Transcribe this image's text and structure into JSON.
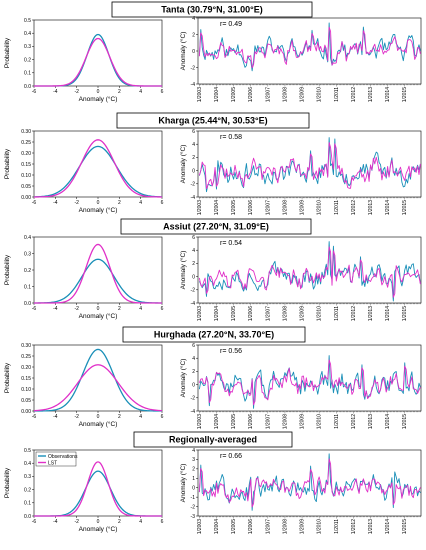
{
  "colors": {
    "observations": "#1a8fb8",
    "lst": "#e030c8"
  },
  "legend": {
    "observations": "Observations",
    "lst": "LST"
  },
  "date_ticks": [
    "1/2003",
    "1/2004",
    "1/2005",
    "1/2006",
    "1/2007",
    "1/2008",
    "1/2009",
    "1/2010",
    "1/2011",
    "1/2012",
    "1/2013",
    "1/2014",
    "1/2015"
  ],
  "chart_data": [
    {
      "panel": "Tanta",
      "title": "Tanta (30.79°N, 31.00°E)",
      "correlation": "r= 0.49",
      "pdf": {
        "type": "line",
        "xlabel": "Anomaly (°C)",
        "ylabel": "Probability",
        "xlim": [
          -6,
          6
        ],
        "ylim": [
          0,
          0.5
        ],
        "xticks": [
          "-6",
          "-4",
          "-2",
          "0",
          "2",
          "4",
          "6"
        ],
        "yticks": [
          "0.0",
          "0.1",
          "0.2",
          "0.3",
          "0.4",
          "0.5"
        ],
        "series": [
          {
            "name": "Observations",
            "peak": 0.39,
            "sigma": 1.02
          },
          {
            "name": "LST",
            "peak": 0.36,
            "sigma": 1.11
          }
        ]
      },
      "ts": {
        "type": "line",
        "ylabel": "Anomaly (°C)",
        "ylim": [
          -4,
          4
        ],
        "yticks": [
          "-4",
          "-2",
          "0",
          "2",
          "4"
        ],
        "amp": 1.0,
        "seed": 11,
        "events": [
          {
            "t": 2010.55,
            "v": 3.4
          },
          {
            "t": 2009.6,
            "v": 2.5
          },
          {
            "t": 2003.05,
            "v": 2.6
          },
          {
            "t": 2006.1,
            "v": -2.4
          },
          {
            "t": 2012.6,
            "v": 2.9
          }
        ]
      }
    },
    {
      "panel": "Kharga",
      "title": "Kharga (25.44°N, 30.53°E)",
      "correlation": "r= 0.58",
      "pdf": {
        "type": "line",
        "xlabel": "Anomaly (°C)",
        "ylabel": "Probability",
        "xlim": [
          -6,
          6
        ],
        "ylim": [
          0,
          0.3
        ],
        "xticks": [
          "-6",
          "-4",
          "-2",
          "0",
          "2",
          "4",
          "6"
        ],
        "yticks": [
          "0.00",
          "0.05",
          "0.10",
          "0.15",
          "0.20",
          "0.25",
          "0.30"
        ],
        "series": [
          {
            "name": "Observations",
            "peak": 0.23,
            "sigma": 1.73
          },
          {
            "name": "LST",
            "peak": 0.26,
            "sigma": 1.53
          }
        ]
      },
      "ts": {
        "type": "line",
        "ylabel": "Anomaly (°C)",
        "ylim": [
          -4,
          6
        ],
        "yticks": [
          "-4",
          "-2",
          "0",
          "2",
          "4",
          "6"
        ],
        "amp": 1.4,
        "seed": 23,
        "events": [
          {
            "t": 2010.55,
            "v": 5.0
          },
          {
            "t": 2010.9,
            "v": 4.8
          },
          {
            "t": 2009.5,
            "v": 3.0
          },
          {
            "t": 2003.4,
            "v": -3.2
          },
          {
            "t": 2004.0,
            "v": -2.8
          }
        ]
      }
    },
    {
      "panel": "Assiut",
      "title": "Assiut (27.20°N, 31.09°E)",
      "correlation": "r= 0.54",
      "pdf": {
        "type": "line",
        "xlabel": "Anomaly (°C)",
        "ylabel": "Probability",
        "xlim": [
          -6,
          6
        ],
        "ylim": [
          0,
          0.4
        ],
        "xticks": [
          "-6",
          "-4",
          "-2",
          "0",
          "2",
          "4",
          "6"
        ],
        "yticks": [
          "0.0",
          "0.1",
          "0.2",
          "0.3",
          "0.4"
        ],
        "series": [
          {
            "name": "Observations",
            "peak": 0.265,
            "sigma": 1.5
          },
          {
            "name": "LST",
            "peak": 0.355,
            "sigma": 1.12
          }
        ]
      },
      "ts": {
        "type": "line",
        "ylabel": "Anomaly (°C)",
        "ylim": [
          -4,
          6
        ],
        "yticks": [
          "-4",
          "-2",
          "0",
          "2",
          "4",
          "6"
        ],
        "amp": 1.3,
        "seed": 37,
        "events": [
          {
            "t": 2010.55,
            "v": 5.3
          },
          {
            "t": 2010.8,
            "v": 4.6
          },
          {
            "t": 2003.4,
            "v": -3.0
          },
          {
            "t": 2014.3,
            "v": -3.7
          },
          {
            "t": 2012.4,
            "v": 3.0
          }
        ]
      }
    },
    {
      "panel": "Hurghada",
      "title": "Hurghada (27.20°N, 33.70°E)",
      "correlation": "r= 0.56",
      "pdf": {
        "type": "line",
        "xlabel": "Anomaly (°C)",
        "ylabel": "Probability",
        "xlim": [
          -6,
          6
        ],
        "ylim": [
          0,
          0.3
        ],
        "xticks": [
          "-6",
          "-4",
          "-2",
          "0",
          "2",
          "4",
          "6"
        ],
        "yticks": [
          "0.00",
          "0.05",
          "0.10",
          "0.15",
          "0.20",
          "0.25",
          "0.30"
        ],
        "series": [
          {
            "name": "Observations",
            "peak": 0.28,
            "sigma": 1.42
          },
          {
            "name": "LST",
            "peak": 0.21,
            "sigma": 1.9
          }
        ]
      },
      "ts": {
        "type": "line",
        "ylabel": "Anomaly (°C)",
        "ylim": [
          -4,
          6
        ],
        "yticks": [
          "-4",
          "-2",
          "0",
          "2",
          "4",
          "6"
        ],
        "amp": 1.3,
        "seed": 51,
        "events": [
          {
            "t": 2010.55,
            "v": 4.4
          },
          {
            "t": 2006.2,
            "v": -3.6
          },
          {
            "t": 2003.6,
            "v": -3.2
          },
          {
            "t": 2015.0,
            "v": 3.3
          },
          {
            "t": 2012.5,
            "v": 3.0
          }
        ]
      }
    },
    {
      "panel": "Regionally-averaged",
      "title": "Regionally-averaged",
      "correlation": "r= 0.66",
      "pdf": {
        "type": "line",
        "xlabel": "Anomaly (°C)",
        "ylabel": "Probability",
        "xlim": [
          -6,
          6
        ],
        "ylim": [
          0,
          0.5
        ],
        "xticks": [
          "-6",
          "-4",
          "-2",
          "0",
          "2",
          "4",
          "6"
        ],
        "yticks": [
          "0.0",
          "0.1",
          "0.2",
          "0.3",
          "0.4",
          "0.5"
        ],
        "series": [
          {
            "name": "Observations",
            "peak": 0.34,
            "sigma": 1.17
          },
          {
            "name": "LST",
            "peak": 0.41,
            "sigma": 0.97
          }
        ]
      },
      "ts": {
        "type": "line",
        "ylabel": "Anomaly (°C)",
        "ylim": [
          -3,
          4
        ],
        "yticks": [
          "-3",
          "-2",
          "-1",
          "0",
          "1",
          "2",
          "3",
          "4"
        ],
        "amp": 0.9,
        "seed": 67,
        "events": [
          {
            "t": 2010.55,
            "v": 3.6
          },
          {
            "t": 2009.5,
            "v": 2.3
          },
          {
            "t": 2006.1,
            "v": -2.4
          },
          {
            "t": 2003.05,
            "v": 2.4
          },
          {
            "t": 2014.3,
            "v": -2.1
          }
        ]
      }
    }
  ]
}
